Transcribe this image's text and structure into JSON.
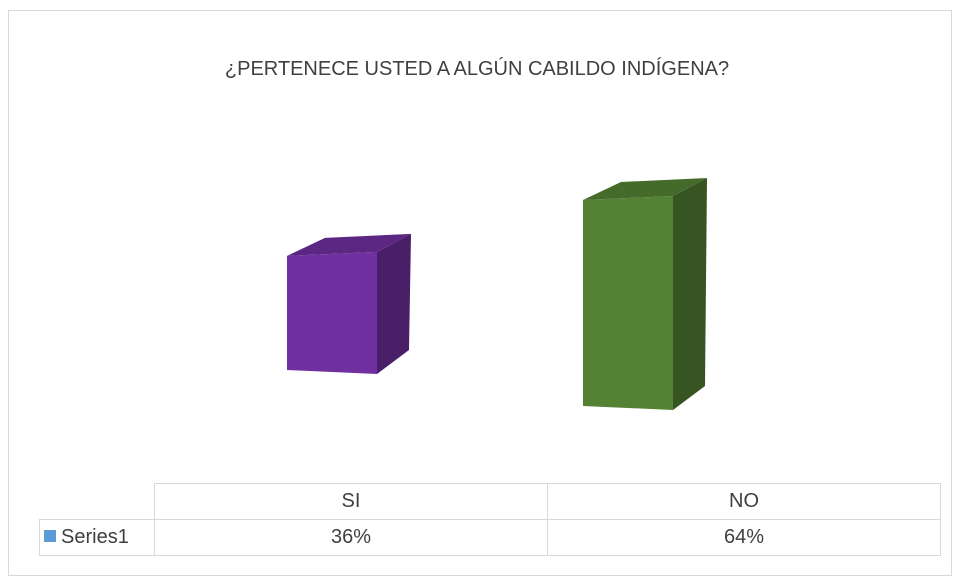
{
  "chart_data": {
    "type": "bar",
    "title": "¿PERTENECE USTED A ALGÚN CABILDO INDÍGENA?",
    "categories": [
      "SI",
      "NO"
    ],
    "series": [
      {
        "name": "Series1",
        "values": [
          0.36,
          0.64
        ],
        "value_labels": [
          "36%",
          "64%"
        ]
      }
    ],
    "bar_colors": [
      "#7030a0",
      "#548235"
    ],
    "legend_key_color": "#5b9bd5",
    "ylim": [
      0,
      0.64
    ],
    "grid": false,
    "legend": "data-table"
  }
}
